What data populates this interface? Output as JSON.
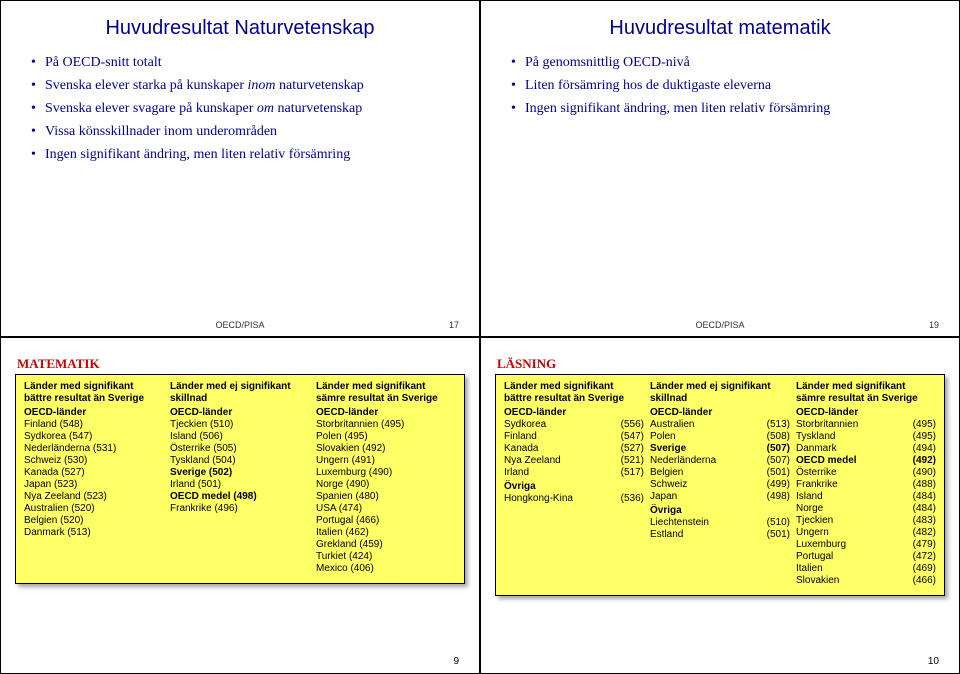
{
  "topLeft": {
    "title": "Huvudresultat Naturvetenskap",
    "bullets": [
      "På OECD-snitt totalt",
      "Svenska elever starka på kunskaper inom naturvetenskap",
      "Svenska elever svagare på kunskaper om naturvetenskap",
      "Vissa könsskillnader inom underområden",
      "Ingen signifikant ändring, men liten relativ försämring"
    ],
    "footerLabel": "OECD/PISA",
    "footerPage": "17"
  },
  "topRight": {
    "title": "Huvudresultat matematik",
    "bullets": [
      "På genomsnittlig OECD-nivå",
      "Liten försämring hos de duktigaste eleverna",
      "Ingen signifikant ändring, men liten relativ försämring"
    ],
    "footerLabel": "OECD/PISA",
    "footerPage": "19"
  },
  "bottomLeft": {
    "boxTitle": "MATEMATIK",
    "pageNum": "9",
    "columns": [
      {
        "header": "Länder med signifikant bättre resultat än Sverige",
        "groups": [
          {
            "subhead": "OECD-länder",
            "items": [
              "Finland (548)",
              "Sydkorea (547)",
              "Nederländerna (531)",
              "Schweiz (530)",
              "Kanada (527)",
              "Japan (523)",
              "Nya Zeeland (523)",
              "Australien (520)",
              "Belgien (520)",
              "Danmark (513)"
            ]
          }
        ]
      },
      {
        "header": "Länder med ej signifikant skillnad",
        "groups": [
          {
            "subhead": "OECD-länder",
            "items": [
              "Tjeckien (510)",
              "Island (506)",
              "Österrike (505)",
              "Tyskland (504)",
              "<b>Sverige (502)</b>",
              "Irland (501)",
              "<b>OECD medel (498)</b>",
              "Frankrike (496)"
            ]
          }
        ]
      },
      {
        "header": "Länder med signifikant sämre resultat än Sverige",
        "groups": [
          {
            "subhead": "OECD-länder",
            "items": [
              "Storbritannien (495)",
              "Polen (495)",
              "Slovakien (492)",
              "Ungern (491)",
              "Luxemburg (490)",
              "Norge (490)",
              "Spanien (480)",
              "USA (474)",
              "Portugal (466)",
              "Italien (462)",
              "Grekland (459)",
              "Turkiet (424)",
              "Mexico (406)"
            ]
          }
        ]
      }
    ]
  },
  "bottomRight": {
    "boxTitle": "LÄSNING",
    "pageNum": "10",
    "columns": [
      {
        "header": "Länder med signifikant bättre resultat än Sverige",
        "groups": [
          {
            "subhead": "OECD-länder",
            "rows": [
              [
                "Sydkorea",
                "(556)"
              ],
              [
                "Finland",
                "(547)"
              ],
              [
                "Kanada",
                "(527)"
              ],
              [
                "Nya Zeeland",
                "(521)"
              ],
              [
                "Irland",
                "(517)"
              ]
            ]
          },
          {
            "subhead": "Övriga",
            "rows": [
              [
                "Hongkong-Kina",
                "(536)"
              ]
            ]
          }
        ]
      },
      {
        "header": "Länder med ej signifikant skillnad",
        "groups": [
          {
            "subhead": "OECD-länder",
            "rows": [
              [
                "Australien",
                "(513)"
              ],
              [
                "Polen",
                "(508)"
              ],
              [
                "<b>Sverige</b>",
                "<b>(507)</b>"
              ],
              [
                "Nederländerna",
                "(507)"
              ],
              [
                "Belgien",
                "(501)"
              ],
              [
                "Schweiz",
                "(499)"
              ],
              [
                "Japan",
                "(498)"
              ]
            ]
          },
          {
            "subhead": "Övriga",
            "rows": [
              [
                "Liechtenstein",
                "(510)"
              ],
              [
                "Estland",
                "(501)"
              ]
            ]
          }
        ]
      },
      {
        "header": "Länder med signifikant sämre resultat än Sverige",
        "groups": [
          {
            "subhead": "OECD-länder",
            "rows": [
              [
                "Storbritannien",
                "(495)"
              ],
              [
                "Tyskland",
                "(495)"
              ],
              [
                "Danmark",
                "(494)"
              ],
              [
                "<b>OECD medel</b>",
                "<b>(492)</b>"
              ],
              [
                "Österrike",
                "(490)"
              ],
              [
                "Frankrike",
                "(488)"
              ],
              [
                "Island",
                "(484)"
              ],
              [
                "Norge",
                "(484)"
              ],
              [
                "Tjeckien",
                "(483)"
              ],
              [
                "Ungern",
                "(482)"
              ],
              [
                "Luxemburg",
                "(479)"
              ],
              [
                "Portugal",
                "(472)"
              ],
              [
                "Italien",
                "(469)"
              ],
              [
                "Slovakien",
                "(466)"
              ]
            ]
          }
        ]
      }
    ]
  }
}
